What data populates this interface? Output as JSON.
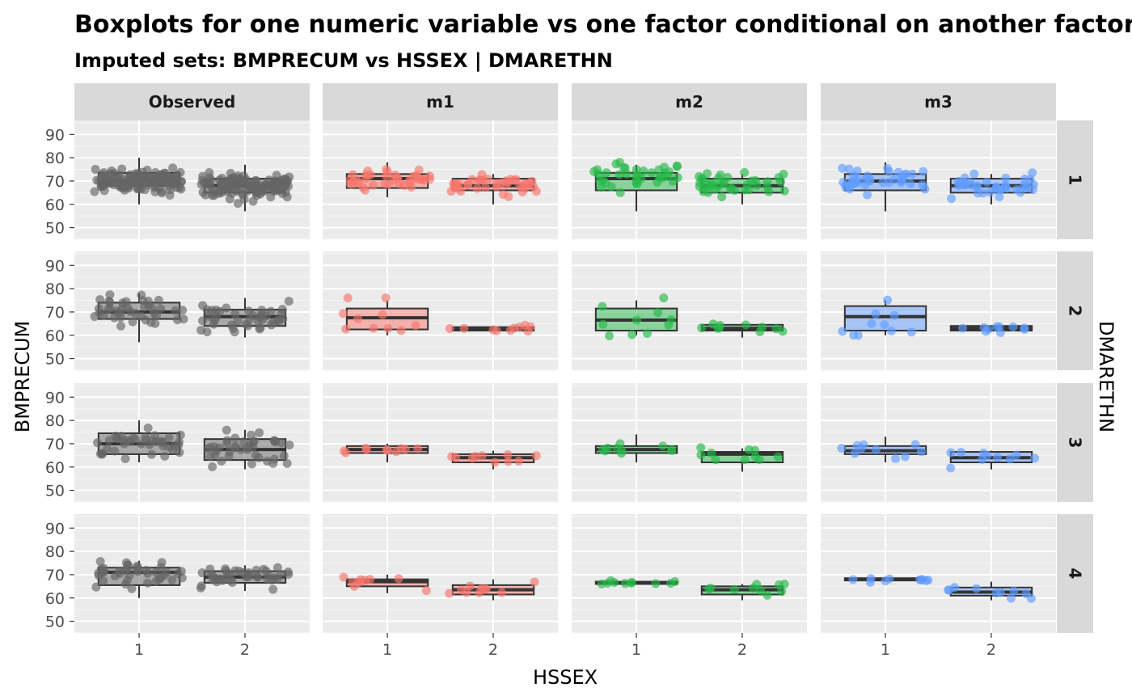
{
  "chart_data": {
    "type": "boxplot",
    "title": "Boxplots for one numeric variable vs one factor conditional on another factor",
    "subtitle": "Imputed sets:  BMPRECUM vs HSSEX | DMARETHN",
    "xlabel": "HSSEX",
    "ylabel": "BMPRECUM",
    "facet_row_label": "DMARETHN",
    "facet_columns": [
      "Observed",
      "m1",
      "m2",
      "m3"
    ],
    "facet_rows": [
      "1",
      "2",
      "3",
      "4"
    ],
    "categories": [
      "1",
      "2"
    ],
    "ylim": [
      45,
      96
    ],
    "yticks": [
      50,
      60,
      70,
      80,
      90
    ],
    "grid": true,
    "colors": {
      "Observed": "#666666",
      "m1": "#f8766d",
      "m2": "#26b84a",
      "m3": "#619cff"
    },
    "panels": [
      {
        "row": "1",
        "col": "Observed",
        "boxes": [
          {
            "x": "1",
            "q1": 68,
            "median": 70,
            "q3": 73.5,
            "lo": 60,
            "hi": 80
          },
          {
            "x": "2",
            "q1": 65,
            "median": 68,
            "q3": 71,
            "lo": 57,
            "hi": 77
          }
        ]
      },
      {
        "row": "1",
        "col": "m1",
        "boxes": [
          {
            "x": "1",
            "q1": 67,
            "median": 71,
            "q3": 73,
            "lo": 63,
            "hi": 78
          },
          {
            "x": "2",
            "q1": 66,
            "median": 68,
            "q3": 71,
            "lo": 60,
            "hi": 73
          }
        ]
      },
      {
        "row": "1",
        "col": "m2",
        "boxes": [
          {
            "x": "1",
            "q1": 66,
            "median": 71,
            "q3": 73.5,
            "lo": 57,
            "hi": 77
          },
          {
            "x": "2",
            "q1": 65,
            "median": 68,
            "q3": 71,
            "lo": 60,
            "hi": 73
          }
        ]
      },
      {
        "row": "1",
        "col": "m3",
        "boxes": [
          {
            "x": "1",
            "q1": 66,
            "median": 70,
            "q3": 73,
            "lo": 57,
            "hi": 78
          },
          {
            "x": "2",
            "q1": 65,
            "median": 68,
            "q3": 71,
            "lo": 60,
            "hi": 73
          }
        ]
      },
      {
        "row": "2",
        "col": "Observed",
        "boxes": [
          {
            "x": "1",
            "q1": 67,
            "median": 70,
            "q3": 74,
            "lo": 57,
            "hi": 78
          },
          {
            "x": "2",
            "q1": 64,
            "median": 68,
            "q3": 71,
            "lo": 59,
            "hi": 76
          }
        ]
      },
      {
        "row": "2",
        "col": "m1",
        "boxes": [
          {
            "x": "1",
            "q1": 62.5,
            "median": 67.5,
            "q3": 71.5,
            "lo": 60,
            "hi": 75
          },
          {
            "x": "2",
            "q1": 62,
            "median": 63,
            "q3": 63.5,
            "lo": 62,
            "hi": 64
          }
        ]
      },
      {
        "row": "2",
        "col": "m2",
        "boxes": [
          {
            "x": "1",
            "q1": 62,
            "median": 66.5,
            "q3": 71.5,
            "lo": 60,
            "hi": 75
          },
          {
            "x": "2",
            "q1": 62,
            "median": 63,
            "q3": 64.5,
            "lo": 59,
            "hi": 65
          }
        ]
      },
      {
        "row": "2",
        "col": "m3",
        "boxes": [
          {
            "x": "1",
            "q1": 62,
            "median": 68,
            "q3": 72.5,
            "lo": 60,
            "hi": 75
          },
          {
            "x": "2",
            "q1": 62,
            "median": 63,
            "q3": 64,
            "lo": 62,
            "hi": 64
          }
        ]
      },
      {
        "row": "3",
        "col": "Observed",
        "boxes": [
          {
            "x": "1",
            "q1": 65.5,
            "median": 70,
            "q3": 74.5,
            "lo": 62,
            "hi": 80
          },
          {
            "x": "2",
            "q1": 63,
            "median": 67.5,
            "q3": 72,
            "lo": 59,
            "hi": 76
          }
        ]
      },
      {
        "row": "3",
        "col": "m1",
        "boxes": [
          {
            "x": "1",
            "q1": 66,
            "median": 67.5,
            "q3": 69,
            "lo": 62,
            "hi": 70
          },
          {
            "x": "2",
            "q1": 62,
            "median": 64,
            "q3": 65.5,
            "lo": 59,
            "hi": 67
          }
        ]
      },
      {
        "row": "3",
        "col": "m2",
        "boxes": [
          {
            "x": "1",
            "q1": 66,
            "median": 67.5,
            "q3": 69,
            "lo": 62,
            "hi": 74
          },
          {
            "x": "2",
            "q1": 62,
            "median": 65.5,
            "q3": 66.5,
            "lo": 58,
            "hi": 68
          }
        ]
      },
      {
        "row": "3",
        "col": "m3",
        "boxes": [
          {
            "x": "1",
            "q1": 65.5,
            "median": 67,
            "q3": 69,
            "lo": 62,
            "hi": 73
          },
          {
            "x": "2",
            "q1": 62,
            "median": 64,
            "q3": 66.5,
            "lo": 59,
            "hi": 67
          }
        ]
      },
      {
        "row": "4",
        "col": "Observed",
        "boxes": [
          {
            "x": "1",
            "q1": 65.5,
            "median": 71,
            "q3": 73,
            "lo": 60,
            "hi": 76
          },
          {
            "x": "2",
            "q1": 66.5,
            "median": 69,
            "q3": 71.5,
            "lo": 63,
            "hi": 74
          }
        ]
      },
      {
        "row": "4",
        "col": "m1",
        "boxes": [
          {
            "x": "1",
            "q1": 65,
            "median": 67,
            "q3": 68,
            "lo": 62,
            "hi": 70
          },
          {
            "x": "2",
            "q1": 61.5,
            "median": 63.5,
            "q3": 65.5,
            "lo": 59,
            "hi": 68
          }
        ]
      },
      {
        "row": "4",
        "col": "m2",
        "boxes": [
          {
            "x": "1",
            "q1": 66,
            "median": 66.5,
            "q3": 67,
            "lo": 66,
            "hi": 67
          },
          {
            "x": "2",
            "q1": 61.5,
            "median": 63.5,
            "q3": 65,
            "lo": 59,
            "hi": 66
          }
        ]
      },
      {
        "row": "4",
        "col": "m3",
        "boxes": [
          {
            "x": "1",
            "q1": 67.5,
            "median": 68,
            "q3": 68.5,
            "lo": 67,
            "hi": 69
          },
          {
            "x": "2",
            "q1": 61,
            "median": 62.5,
            "q3": 64.5,
            "lo": 59,
            "hi": 67
          }
        ]
      }
    ]
  }
}
